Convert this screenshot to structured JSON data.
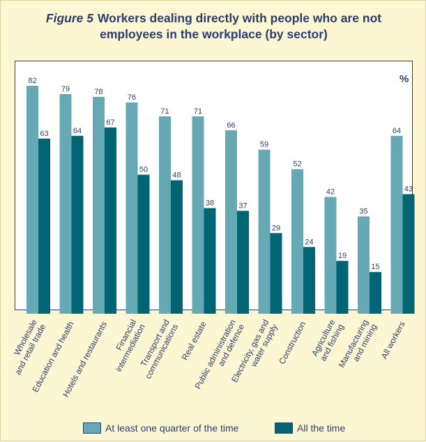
{
  "title": {
    "figure_label": "Figure 5",
    "text_line1": "Workers dealing directly with people who are not",
    "text_line2": "employees in the workplace (by sector)"
  },
  "unit_label": "%",
  "colors": {
    "series_1": "#66a9b4",
    "series_2": "#006472",
    "title": "#2a3e6e",
    "background": "#fdf6d2"
  },
  "chart_data": {
    "type": "bar",
    "title": "Figure 5 Workers dealing directly with people who are not employees in the workplace (by sector)",
    "xlabel": "",
    "ylabel": "%",
    "ylim": [
      0,
      82
    ],
    "grid": false,
    "legend_position": "bottom",
    "categories": [
      "Wholesale|and retail trade",
      "Education and health",
      "Hotels and restaurants",
      "Financial|intermediation",
      "Transport and|communications",
      "Real estate",
      "Public administration|and defence",
      "Electricity, gas and|water supply",
      "Construction",
      "Agriculture|and fishing",
      "Manufacturing|and mining",
      "All workers"
    ],
    "series": [
      {
        "name": "At least one quarter of the time",
        "values": [
          82,
          79,
          78,
          76,
          71,
          71,
          66,
          59,
          52,
          42,
          35,
          64
        ]
      },
      {
        "name": "All the time",
        "values": [
          63,
          64,
          67,
          50,
          48,
          38,
          37,
          29,
          24,
          19,
          15,
          43
        ]
      }
    ]
  }
}
